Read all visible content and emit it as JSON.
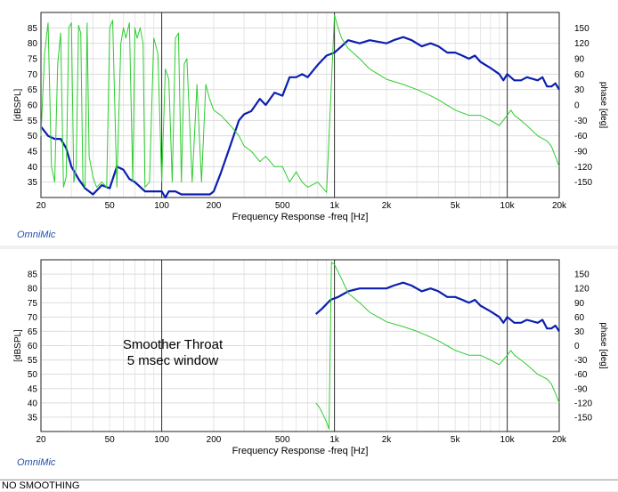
{
  "app": {
    "brand": "OmniMic"
  },
  "status_bar": {
    "text": "NO SMOOTHING"
  },
  "chart_data": [
    {
      "type": "line",
      "title": "",
      "xlabel": "Frequency Response -freq [Hz]",
      "ylabel": "[dBSPL]",
      "y2label": "phase [deg]",
      "xscale": "log",
      "xlim": [
        20,
        20000
      ],
      "ylim": [
        30,
        90
      ],
      "y2lim": [
        -180,
        180
      ],
      "x_ticks": [
        "20",
        "50",
        "100",
        "200",
        "500",
        "1k",
        "2k",
        "5k",
        "10k",
        "20k"
      ],
      "y_ticks": [
        "35",
        "40",
        "45",
        "50",
        "55",
        "60",
        "65",
        "70",
        "75",
        "80",
        "85"
      ],
      "y2_ticks": [
        "150",
        "120",
        "90",
        "60",
        "30",
        "0",
        "-30",
        "-60",
        "-90",
        "-120",
        "-150"
      ],
      "annotation": [],
      "series": [
        {
          "color": "#0b1fb0",
          "axis": "left",
          "x": [
            20,
            22,
            24,
            26,
            28,
            30,
            33,
            36,
            40,
            45,
            50,
            55,
            60,
            65,
            70,
            80,
            90,
            100,
            105,
            110,
            120,
            130,
            150,
            170,
            190,
            200,
            220,
            250,
            280,
            300,
            330,
            370,
            400,
            450,
            500,
            550,
            600,
            650,
            700,
            800,
            900,
            1000,
            1100,
            1200,
            1400,
            1600,
            2000,
            2200,
            2500,
            2800,
            3200,
            3600,
            4000,
            4500,
            5000,
            5500,
            6000,
            6500,
            7000,
            8000,
            9000,
            9500,
            10000,
            11000,
            12000,
            13000,
            15000,
            16000,
            17000,
            18000,
            19000,
            20000
          ],
          "values": [
            53,
            50,
            49,
            49,
            46,
            40,
            36,
            33,
            31,
            34,
            33,
            40,
            39,
            36,
            35,
            32,
            32,
            32,
            30,
            32,
            32,
            31,
            31,
            31,
            31,
            32,
            38,
            47,
            55,
            57,
            58,
            62,
            60,
            64,
            63,
            69,
            69,
            70,
            69,
            73,
            76,
            77,
            79,
            81,
            80,
            81,
            80,
            81,
            82,
            81,
            79,
            80,
            79,
            77,
            77,
            76,
            75,
            76,
            74,
            72,
            70,
            68,
            70,
            68,
            68,
            69,
            68,
            69,
            66,
            66,
            67,
            65
          ]
        },
        {
          "color": "#2ecc2e",
          "axis": "right",
          "x": [
            20,
            21,
            22,
            23,
            24,
            25,
            26,
            27,
            28,
            29,
            30,
            31,
            32,
            33,
            34,
            35,
            36,
            37,
            38,
            40,
            42,
            45,
            48,
            50,
            52,
            55,
            58,
            60,
            62,
            65,
            68,
            70,
            72,
            75,
            78,
            80,
            85,
            90,
            95,
            100,
            105,
            110,
            115,
            120,
            125,
            130,
            135,
            140,
            150,
            160,
            170,
            180,
            190,
            200,
            220,
            250,
            280,
            300,
            330,
            370,
            400,
            450,
            500,
            550,
            600,
            650,
            700,
            800,
            900,
            1000,
            1050,
            1100,
            1200,
            1400,
            1600,
            2000,
            2500,
            3000,
            3500,
            4000,
            5000,
            6000,
            7000,
            8000,
            9000,
            10000,
            10500,
            11000,
            12000,
            13000,
            15000,
            17000,
            18000,
            19000,
            20000
          ],
          "values": [
            -60,
            100,
            160,
            -120,
            -150,
            80,
            140,
            -160,
            -140,
            150,
            160,
            -150,
            -120,
            155,
            140,
            -150,
            -160,
            160,
            -100,
            -140,
            -160,
            -150,
            -160,
            150,
            165,
            -160,
            120,
            150,
            130,
            160,
            -150,
            150,
            130,
            150,
            120,
            -160,
            -150,
            130,
            100,
            -150,
            70,
            50,
            -150,
            130,
            140,
            -150,
            80,
            90,
            -150,
            40,
            -150,
            40,
            10,
            -10,
            -20,
            -40,
            -60,
            -80,
            -90,
            -110,
            -100,
            -120,
            -120,
            -150,
            -130,
            -150,
            -160,
            -150,
            -170,
            175,
            150,
            130,
            110,
            90,
            70,
            50,
            40,
            30,
            20,
            10,
            -10,
            -20,
            -20,
            -30,
            -40,
            -20,
            -10,
            -20,
            -30,
            -40,
            -60,
            -70,
            -80,
            -100,
            -120
          ]
        }
      ]
    },
    {
      "type": "line",
      "title": "",
      "xlabel": "Frequency Response -freq [Hz]",
      "ylabel": "[dBSPL]",
      "y2label": "phase [deg]",
      "xscale": "log",
      "xlim": [
        20,
        20000
      ],
      "ylim": [
        30,
        90
      ],
      "y2lim": [
        -180,
        180
      ],
      "x_ticks": [
        "20",
        "50",
        "100",
        "200",
        "500",
        "1k",
        "2k",
        "5k",
        "10k",
        "20k"
      ],
      "y_ticks": [
        "35",
        "40",
        "45",
        "50",
        "55",
        "60",
        "65",
        "70",
        "75",
        "80",
        "85"
      ],
      "y2_ticks": [
        "150",
        "120",
        "90",
        "60",
        "30",
        "0",
        "-30",
        "-60",
        "-90",
        "-120",
        "-150"
      ],
      "annotation": [
        "Smoother Throat",
        "5 msec window"
      ],
      "series": [
        {
          "color": "#0b1fb0",
          "axis": "left",
          "x": [
            780,
            850,
            950,
            1050,
            1200,
            1400,
            1600,
            2000,
            2200,
            2500,
            2800,
            3200,
            3600,
            4000,
            4500,
            5000,
            5500,
            6000,
            6500,
            7000,
            8000,
            9000,
            9500,
            10000,
            11000,
            12000,
            13000,
            15000,
            16000,
            17000,
            18000,
            19000,
            20000
          ],
          "values": [
            71,
            73,
            76,
            77,
            79,
            80,
            80,
            80,
            81,
            82,
            81,
            79,
            80,
            79,
            77,
            77,
            76,
            75,
            76,
            74,
            72,
            70,
            68,
            70,
            68,
            68,
            69,
            68,
            69,
            66,
            66,
            67,
            65
          ]
        },
        {
          "color": "#2ecc2e",
          "axis": "right",
          "x": [
            780,
            820,
            860,
            900,
            930,
            960,
            1000,
            1100,
            1200,
            1400,
            1600,
            2000,
            2500,
            3000,
            3500,
            4000,
            5000,
            6000,
            7000,
            8000,
            9000,
            10000,
            10500,
            11000,
            12000,
            13000,
            15000,
            17000,
            18000,
            19000,
            20000
          ],
          "values": [
            -120,
            -130,
            -145,
            -160,
            -175,
            175,
            170,
            140,
            110,
            90,
            70,
            50,
            40,
            30,
            20,
            10,
            -10,
            -20,
            -20,
            -30,
            -40,
            -20,
            -10,
            -20,
            -30,
            -40,
            -60,
            -70,
            -80,
            -100,
            -120
          ]
        }
      ]
    }
  ]
}
